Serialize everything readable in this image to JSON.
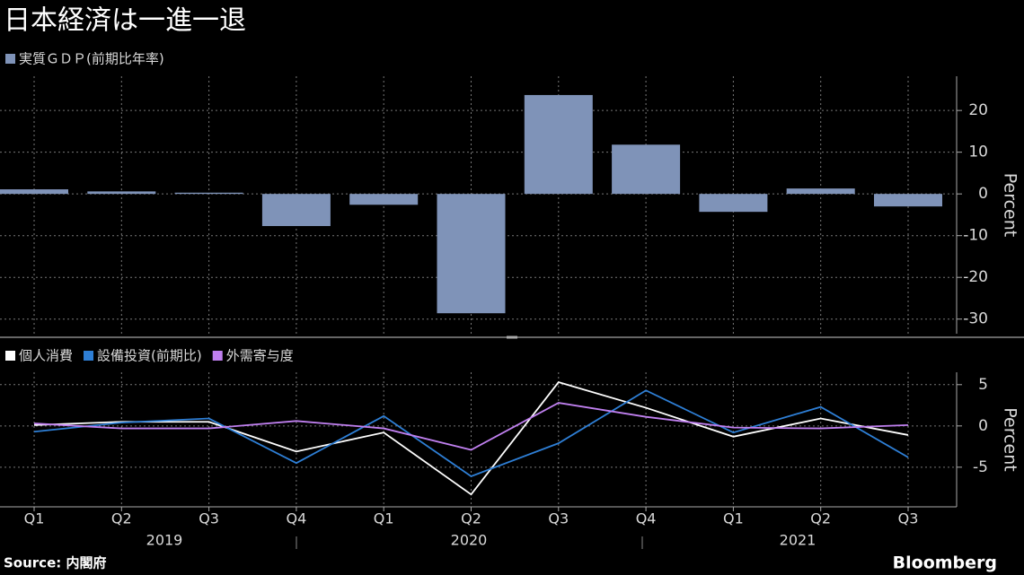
{
  "title": "日本経済は一進一退",
  "source": "Source: 内閣府",
  "brand": "Bloomberg",
  "chart_data": [
    {
      "type": "bar",
      "series": [
        {
          "name": "実質ＧＤＰ(前期比年率)",
          "color": "#7f93b8",
          "values": [
            1.1,
            0.6,
            0.3,
            -7.7,
            -2.6,
            -28.6,
            23.7,
            11.8,
            -4.3,
            1.3,
            -3.0
          ]
        }
      ],
      "ylabel": "Percent",
      "ylim": [
        -33.5,
        28.2
      ],
      "yticks": [
        -30,
        -20,
        -10,
        0,
        10,
        20
      ],
      "grid": true
    },
    {
      "type": "line",
      "categories": [
        "Q1",
        "Q2",
        "Q3",
        "Q4",
        "Q1",
        "Q2",
        "Q3",
        "Q4",
        "Q1",
        "Q2",
        "Q3"
      ],
      "years": [
        "2019",
        "2020",
        "2021"
      ],
      "series": [
        {
          "name": "個人消費",
          "color": "#ffffff",
          "values": [
            0.1,
            0.5,
            0.5,
            -3.1,
            -0.8,
            -8.3,
            5.3,
            2.2,
            -1.3,
            0.9,
            -1.1
          ]
        },
        {
          "name": "設備投資(前期比)",
          "color": "#2e7fd6",
          "values": [
            -0.7,
            0.4,
            0.9,
            -4.5,
            1.2,
            -6.1,
            -2.1,
            4.3,
            -0.8,
            2.3,
            -3.8
          ]
        },
        {
          "name": "外需寄与度",
          "color": "#c080f0",
          "values": [
            0.3,
            -0.3,
            -0.3,
            0.6,
            -0.3,
            -2.9,
            2.8,
            1.1,
            -0.2,
            -0.3,
            0.1
          ]
        }
      ],
      "ylabel": "Percent",
      "ylim": [
        -9.8,
        6.5
      ],
      "yticks": [
        -5,
        0,
        5
      ],
      "grid": true
    }
  ]
}
